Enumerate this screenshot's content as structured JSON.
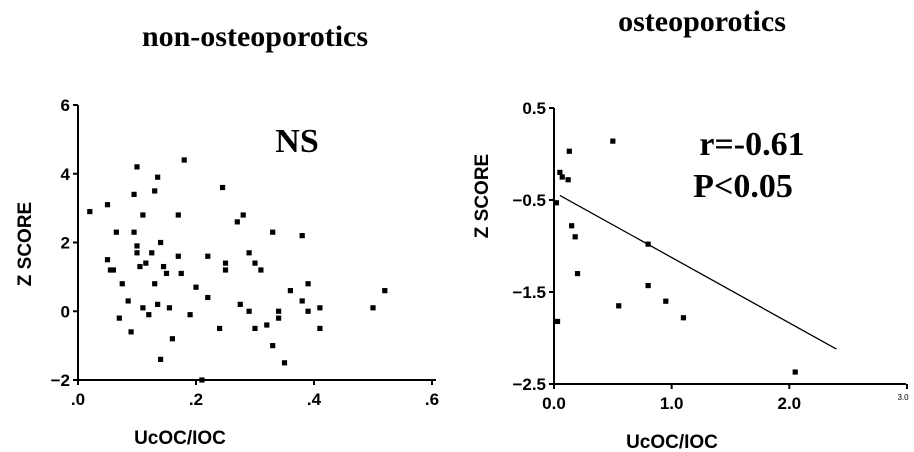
{
  "chart_data": [
    {
      "type": "scatter",
      "title": "non-osteoporotics",
      "xlabel": "UcOC/IOC",
      "ylabel": "Z SCORE",
      "xlim": [
        0,
        0.6
      ],
      "ylim": [
        -2,
        6
      ],
      "x_ticks": [
        ".0",
        ".2",
        ".4",
        ".6"
      ],
      "y_ticks": [
        "-2",
        "0",
        "2",
        "4",
        "6"
      ],
      "annotations": [
        "NS"
      ],
      "series": [
        {
          "x": [
            0.02,
            0.05,
            0.05,
            0.055,
            0.06,
            0.065,
            0.07,
            0.075,
            0.085,
            0.09,
            0.095,
            0.095,
            0.1,
            0.1,
            0.1,
            0.105,
            0.11,
            0.11,
            0.115,
            0.12,
            0.125,
            0.13,
            0.13,
            0.135,
            0.135,
            0.14,
            0.14,
            0.145,
            0.15,
            0.155,
            0.16,
            0.17,
            0.17,
            0.175,
            0.18,
            0.19,
            0.2,
            0.21,
            0.22,
            0.22,
            0.24,
            0.245,
            0.25,
            0.25,
            0.27,
            0.275,
            0.28,
            0.29,
            0.29,
            0.3,
            0.3,
            0.31,
            0.32,
            0.33,
            0.33,
            0.34,
            0.34,
            0.35,
            0.36,
            0.38,
            0.38,
            0.39,
            0.39,
            0.41,
            0.41,
            0.5,
            0.52
          ],
          "y": [
            2.9,
            3.1,
            1.5,
            1.2,
            1.2,
            2.3,
            -0.2,
            0.8,
            0.3,
            -0.6,
            2.3,
            3.4,
            4.2,
            1.9,
            1.7,
            1.3,
            0.1,
            2.8,
            1.4,
            -0.1,
            1.7,
            0.8,
            3.5,
            0.2,
            3.9,
            2.0,
            -1.4,
            1.3,
            1.1,
            0.1,
            -0.8,
            1.6,
            2.8,
            1.1,
            4.4,
            -0.1,
            0.7,
            -2.0,
            1.6,
            0.4,
            -0.5,
            3.6,
            1.4,
            1.2,
            2.6,
            0.2,
            2.8,
            0.0,
            1.7,
            1.4,
            -0.5,
            1.2,
            -0.4,
            -1.0,
            2.3,
            -0.2,
            0.0,
            -1.5,
            0.6,
            0.3,
            2.2,
            0.0,
            0.8,
            -0.5,
            0.1,
            0.1,
            0.6
          ]
        }
      ]
    },
    {
      "type": "scatter",
      "title": "osteoporotics",
      "xlabel": "UcOC/IOC",
      "ylabel": "Z SCORE",
      "xlim": [
        0,
        3.0
      ],
      "ylim": [
        -2.5,
        0.5
      ],
      "x_ticks": [
        "0.0",
        "1.0",
        "2.0"
      ],
      "x_ticks_small": [
        "3.0"
      ],
      "y_ticks": [
        "-2.5",
        "-1.5",
        "-0.5",
        "0.5"
      ],
      "annotations": [
        "r=-0.61",
        "P<0.05"
      ],
      "series": [
        {
          "x": [
            0.02,
            0.03,
            0.05,
            0.07,
            0.12,
            0.13,
            0.15,
            0.18,
            0.2,
            0.5,
            0.55,
            0.8,
            0.8,
            0.95,
            1.1,
            2.05
          ],
          "y": [
            -0.53,
            -1.82,
            -0.2,
            -0.25,
            -0.28,
            0.03,
            -0.78,
            -0.9,
            -1.3,
            0.14,
            -1.65,
            -0.98,
            -1.43,
            -1.6,
            -1.78,
            -2.37
          ]
        }
      ],
      "regression_line": {
        "x": [
          0.05,
          2.4
        ],
        "y": [
          -0.45,
          -2.12
        ]
      }
    }
  ]
}
